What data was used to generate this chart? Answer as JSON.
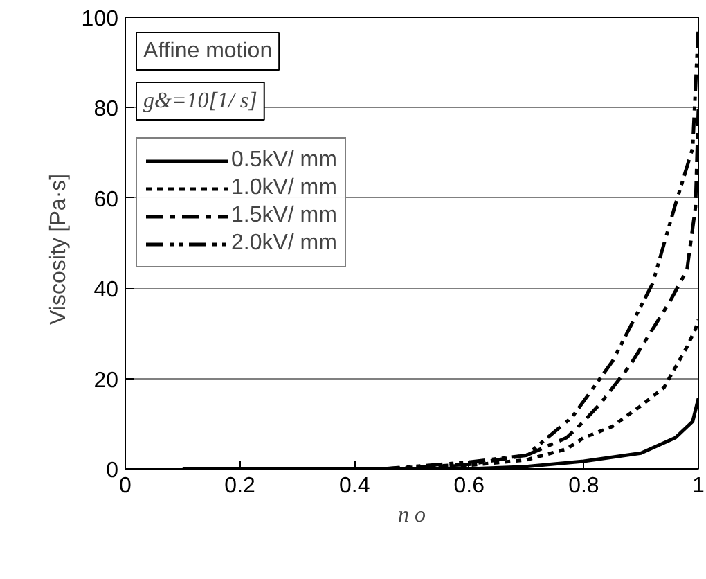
{
  "chart_data": {
    "type": "line",
    "xlabel": "n o",
    "ylabel": "Viscosity   [Pa·s]",
    "annotations": [
      "Affine motion",
      "g&=10[1/ s]"
    ],
    "xlim": [
      0,
      1
    ],
    "xticks": [
      0,
      0.2,
      0.4,
      0.6,
      0.8,
      1
    ],
    "ylim": [
      0,
      100
    ],
    "yticks": [
      0,
      20,
      40,
      60,
      80,
      100
    ],
    "grid": "y",
    "legend": "top left",
    "marker": "none",
    "series": [
      {
        "name": "0.5kV/ mm",
        "color": "#000000",
        "line_style": "solid",
        "x": [
          0.1,
          0.6,
          0.7,
          0.8,
          0.9,
          0.96,
          0.99,
          1.0
        ],
        "values": [
          0,
          0,
          0.5,
          1.7,
          3.5,
          6.9,
          10.5,
          15.6
        ]
      },
      {
        "name": "1.0kV/ mm",
        "color": "#000000",
        "line_style": "dotted",
        "x": [
          0.45,
          0.6,
          0.7,
          0.77,
          0.8,
          0.85,
          0.9,
          0.94,
          0.98,
          0.995,
          1.0
        ],
        "values": [
          0,
          0.8,
          2,
          4.4,
          6.9,
          9.4,
          14,
          18,
          27,
          31,
          33
        ]
      },
      {
        "name": "1.5kV/ mm",
        "color": "#000000",
        "line_style": "dashed",
        "x": [
          0.45,
          0.6,
          0.7,
          0.77,
          0.8,
          0.83,
          0.88,
          0.95,
          0.98,
          0.995,
          1.0
        ],
        "values": [
          0,
          1,
          3,
          6.9,
          10.5,
          14.6,
          22.8,
          37,
          44,
          58,
          80
        ]
      },
      {
        "name": "2.0kV/ mm",
        "color": "#000000",
        "line_style": "dashdot",
        "x": [
          0.45,
          0.6,
          0.7,
          0.78,
          0.85,
          0.92,
          0.96,
          0.99,
          1.0
        ],
        "values": [
          0,
          1.5,
          3,
          11.5,
          23.8,
          41,
          58.6,
          71,
          98
        ]
      }
    ]
  }
}
